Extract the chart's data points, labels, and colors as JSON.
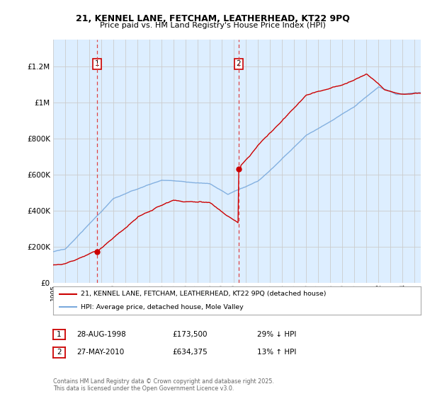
{
  "title_line1": "21, KENNEL LANE, FETCHAM, LEATHERHEAD, KT22 9PQ",
  "title_line2": "Price paid vs. HM Land Registry's House Price Index (HPI)",
  "legend_line1": "21, KENNEL LANE, FETCHAM, LEATHERHEAD, KT22 9PQ (detached house)",
  "legend_line2": "HPI: Average price, detached house, Mole Valley",
  "footnote": "Contains HM Land Registry data © Crown copyright and database right 2025.\nThis data is licensed under the Open Government Licence v3.0.",
  "sale1_label": "1",
  "sale1_date": "28-AUG-1998",
  "sale1_price": "£173,500",
  "sale1_hpi": "29% ↓ HPI",
  "sale2_label": "2",
  "sale2_date": "27-MAY-2010",
  "sale2_price": "£634,375",
  "sale2_hpi": "13% ↑ HPI",
  "sale1_year": 1998.65,
  "sale1_value": 173500,
  "sale2_year": 2010.4,
  "sale2_value": 634375,
  "vline1_year": 1998.65,
  "vline2_year": 2010.4,
  "ylim": [
    0,
    1350000
  ],
  "xlim_start": 1995.0,
  "xlim_end": 2025.5,
  "background_color": "#ffffff",
  "plot_bg_color": "#ddeeff",
  "grid_color": "#cccccc",
  "red_color": "#cc0000",
  "blue_color": "#7aaadd",
  "vline_color": "#dd4444",
  "shade_color": "#ddeeff"
}
